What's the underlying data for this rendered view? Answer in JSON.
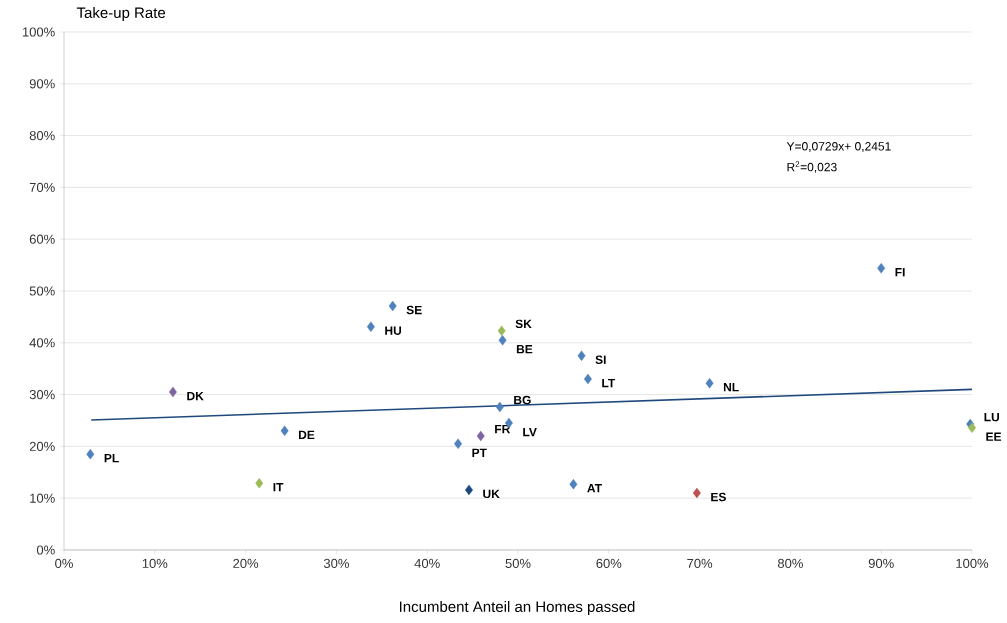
{
  "chart_data": {
    "type": "scatter",
    "xlabel": "Incumbent Anteil an Homes passed",
    "ylabel": "Take-up Rate",
    "xlim": [
      0,
      100
    ],
    "ylim": [
      0,
      100
    ],
    "xticks": [
      {
        "value": 0,
        "label": "0%"
      },
      {
        "value": 10,
        "label": "10%"
      },
      {
        "value": 20,
        "label": "20%"
      },
      {
        "value": 30,
        "label": "30%"
      },
      {
        "value": 40,
        "label": "40%"
      },
      {
        "value": 50,
        "label": "50%"
      },
      {
        "value": 60,
        "label": "60%"
      },
      {
        "value": 70,
        "label": "70%"
      },
      {
        "value": 80,
        "label": "80%"
      },
      {
        "value": 90,
        "label": "90%"
      },
      {
        "value": 100,
        "label": "100%"
      }
    ],
    "yticks": [
      {
        "value": 0,
        "label": "0%"
      },
      {
        "value": 10,
        "label": "10%"
      },
      {
        "value": 20,
        "label": "20%"
      },
      {
        "value": 30,
        "label": "30%"
      },
      {
        "value": 40,
        "label": "40%"
      },
      {
        "value": 50,
        "label": "50%"
      },
      {
        "value": 60,
        "label": "60%"
      },
      {
        "value": 70,
        "label": "70%"
      },
      {
        "value": 80,
        "label": "80%"
      },
      {
        "value": 90,
        "label": "90%"
      },
      {
        "value": 100,
        "label": "100%"
      }
    ],
    "grid": "y",
    "marker": "diamond",
    "series": [
      {
        "x": [
          2.9,
          36.2,
          33.8,
          48.2,
          48.3,
          57.0,
          57.7,
          71.1,
          90.0,
          12.0,
          48.0,
          49.0,
          24.3,
          43.4,
          45.9,
          21.5,
          44.6,
          56.1,
          69.7,
          99.8,
          100
        ],
        "values": [
          18.5,
          47.1,
          43.1,
          42.3,
          40.5,
          37.5,
          33.0,
          32.2,
          54.4,
          30.5,
          27.6,
          24.5,
          23.0,
          20.5,
          22.0,
          12.9,
          11.6,
          12.7,
          11.0,
          24.3,
          23.6
        ],
        "colors": [
          "#4f81bd",
          "#4f81bd",
          "#4f81bd",
          "#9bbb59",
          "#4f81bd",
          "#4f81bd",
          "#4f81bd",
          "#4f81bd",
          "#4f81bd",
          "#8064a2",
          "#4f81bd",
          "#4f81bd",
          "#4f81bd",
          "#4f81bd",
          "#8064a2",
          "#9bbb59",
          "#1f497d",
          "#4f81bd",
          "#c0504d",
          "#4f81bd",
          "#9bbb59"
        ]
      },
      {
        "type": "line",
        "x": [
          3,
          100
        ],
        "values": [
          25.1,
          31.0
        ],
        "color": "#1f497d",
        "marker": "none"
      }
    ],
    "annotations": [
      {
        "text": "PL",
        "x": 2.9,
        "y": 18.5
      },
      {
        "text": "SE",
        "x": 36.2,
        "y": 47.1
      },
      {
        "text": "HU",
        "x": 33.8,
        "y": 43.1
      },
      {
        "text": "SK",
        "x": 48.2,
        "y": 42.3
      },
      {
        "text": "BE",
        "x": 48.3,
        "y": 40.5
      },
      {
        "text": "SI",
        "x": 57.0,
        "y": 37.5
      },
      {
        "text": "LT",
        "x": 57.7,
        "y": 33.0
      },
      {
        "text": "NL",
        "x": 71.1,
        "y": 32.2
      },
      {
        "text": "FI",
        "x": 90.0,
        "y": 54.4
      },
      {
        "text": "DK",
        "x": 12.0,
        "y": 30.5
      },
      {
        "text": "BG",
        "x": 48.0,
        "y": 27.6
      },
      {
        "text": "LV",
        "x": 49.0,
        "y": 24.5
      },
      {
        "text": "DE",
        "x": 24.3,
        "y": 23.0
      },
      {
        "text": "PT",
        "x": 43.4,
        "y": 20.5
      },
      {
        "text": "FR",
        "x": 45.9,
        "y": 22.0
      },
      {
        "text": "IT",
        "x": 21.5,
        "y": 12.9
      },
      {
        "text": "UK",
        "x": 44.6,
        "y": 11.6
      },
      {
        "text": "AT",
        "x": 56.1,
        "y": 12.7
      },
      {
        "text": "ES",
        "x": 69.7,
        "y": 11.0
      },
      {
        "text": "LU",
        "x": 99.8,
        "y": 24.3
      },
      {
        "text": "EE",
        "x": 100,
        "y": 23.6
      },
      "Y=0,0729x+ 0,2451",
      "R$^{2}$=0,023"
    ]
  }
}
